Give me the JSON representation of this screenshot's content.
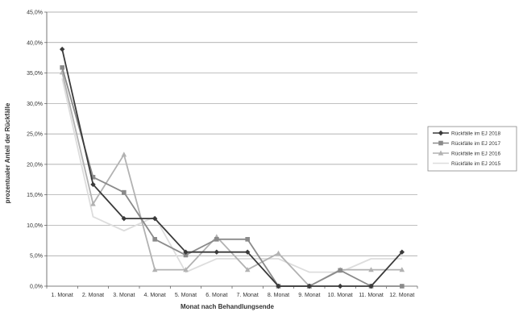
{
  "chart_data": {
    "type": "line",
    "title": "",
    "xlabel": "Monat nach Behandlungsende",
    "ylabel": "prozentualer Anteil der Rückfälle",
    "categories": [
      "1. Monat",
      "2. Monat",
      "3. Monat",
      "4. Monat",
      "5. Monat",
      "6. Monat",
      "7. Monat",
      "8. Monat",
      "9. Monat",
      "10. Monat",
      "11. Monat",
      "12. Monat"
    ],
    "y_ticks": [
      "0,0%",
      "5,0%",
      "10,0%",
      "15,0%",
      "20,0%",
      "25,0%",
      "30,0%",
      "35,0%",
      "40,0%",
      "45,0%"
    ],
    "ylim": [
      0,
      45
    ],
    "grid": true,
    "legend_position": "right",
    "series": [
      {
        "name": "Rückfälle im EJ 2018",
        "color": "#3a3a3a",
        "marker": "diamond",
        "values": [
          38.9,
          16.7,
          11.1,
          11.1,
          5.6,
          5.6,
          5.6,
          0.0,
          0.0,
          0.0,
          0.0,
          5.6
        ]
      },
      {
        "name": "Rückfälle im EJ 2017",
        "color": "#8a8a8a",
        "marker": "square",
        "values": [
          35.9,
          17.9,
          15.4,
          7.7,
          5.1,
          7.7,
          7.7,
          0.0,
          0.0,
          2.6,
          0.0,
          0.0
        ]
      },
      {
        "name": "Rückfälle im EJ 2016",
        "color": "#b2b2b2",
        "marker": "triangle",
        "values": [
          35.1,
          13.5,
          21.6,
          2.7,
          2.7,
          8.1,
          2.7,
          5.4,
          0.0,
          2.7,
          2.7,
          2.7
        ]
      },
      {
        "name": "Rückfälle im EJ 2015",
        "color": "#dddddd",
        "marker": "none",
        "values": [
          34.1,
          11.4,
          9.1,
          11.4,
          2.3,
          4.5,
          4.5,
          4.5,
          2.3,
          2.3,
          4.5,
          4.5
        ]
      }
    ]
  }
}
